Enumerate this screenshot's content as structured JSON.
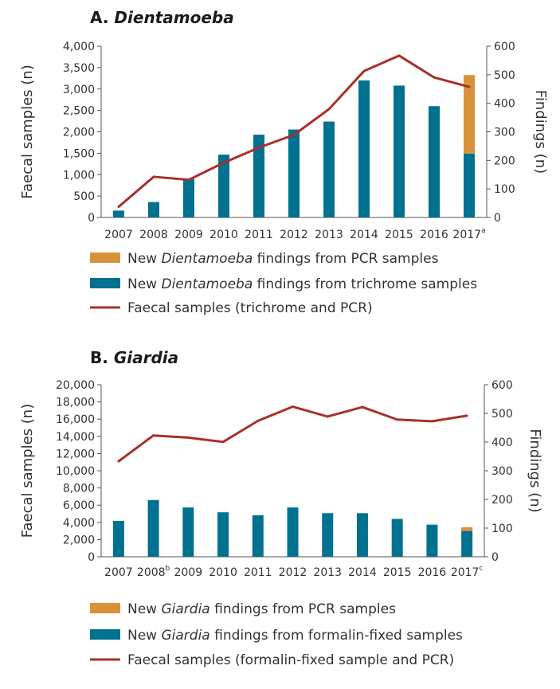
{
  "colors": {
    "pcr": "#D8933A",
    "microscopy": "#00718F",
    "line": "#A8302A",
    "axis": "#555555"
  },
  "chart_data": [
    {
      "id": "A",
      "type": "bar",
      "title_prefix": "A.",
      "title_italic": "Dientamoeba",
      "ylabel_left": "Faecal samples (n)",
      "ylabel_right": "Findings (n)",
      "categories": [
        "2007",
        "2008",
        "2009",
        "2010",
        "2011",
        "2012",
        "2013",
        "2014",
        "2015",
        "2016",
        "2017"
      ],
      "category_superscripts": [
        "",
        "",
        "",
        "",
        "",
        "",
        "",
        "",
        "",
        "",
        "a"
      ],
      "ylim_left": [
        0,
        4000
      ],
      "yticks_left": [
        "0",
        "500",
        "1,000",
        "1,500",
        "2,000",
        "2,500",
        "3,000",
        "3,500",
        "4,000"
      ],
      "ylim_right": [
        0,
        600
      ],
      "yticks_right": [
        "0",
        "100",
        "200",
        "300",
        "400",
        "500",
        "600"
      ],
      "series": [
        {
          "name_before": "New ",
          "name_italic": "Dientamoeba",
          "name_after": " findings from trichrome samples",
          "kind": "bar",
          "axis": "right",
          "color_key": "microscopy",
          "values": [
            24,
            54,
            135,
            220,
            290,
            308,
            336,
            480,
            462,
            390,
            224
          ]
        },
        {
          "name_before": "New ",
          "name_italic": "Dientamoeba",
          "name_after": " findings from PCR samples",
          "kind": "bar-stack",
          "axis": "right",
          "color_key": "pcr",
          "values": [
            0,
            0,
            0,
            0,
            0,
            0,
            0,
            0,
            0,
            0,
            275
          ]
        },
        {
          "name_before": "Faecal samples (trichrome and PCR)",
          "name_italic": "",
          "name_after": "",
          "kind": "line",
          "axis": "left",
          "color_key": "line",
          "values": [
            250,
            950,
            880,
            1280,
            1630,
            1930,
            2530,
            3420,
            3780,
            3270,
            3050
          ]
        }
      ],
      "legend_order": [
        1,
        0,
        2
      ]
    },
    {
      "id": "B",
      "type": "bar",
      "title_prefix": "B.",
      "title_italic": "Giardia",
      "ylabel_left": "Faecal samples (n)",
      "ylabel_right": "Findings (n)",
      "categories": [
        "2007",
        "2008",
        "2009",
        "2010",
        "2011",
        "2012",
        "2013",
        "2014",
        "2015",
        "2016",
        "2017"
      ],
      "category_superscripts": [
        "",
        "b",
        "",
        "",
        "",
        "",
        "",
        "",
        "",
        "",
        "c"
      ],
      "ylim_left": [
        0,
        20000
      ],
      "yticks_left": [
        "0",
        "2,000",
        "4,000",
        "6,000",
        "8,000",
        "10,000",
        "12,000",
        "14,000",
        "16,000",
        "18,000",
        "20,000"
      ],
      "ylim_right": [
        0,
        600
      ],
      "yticks_right": [
        "0",
        "100",
        "200",
        "300",
        "400",
        "500",
        "600"
      ],
      "series": [
        {
          "name_before": "New ",
          "name_italic": "Giardia",
          "name_after": " findings from formalin-fixed samples",
          "kind": "bar",
          "axis": "right",
          "color_key": "microscopy",
          "values": [
            125,
            198,
            172,
            155,
            145,
            172,
            152,
            152,
            132,
            112,
            90
          ]
        },
        {
          "name_before": "New ",
          "name_italic": "Giardia",
          "name_after": " findings from PCR samples",
          "kind": "bar-stack",
          "axis": "right",
          "color_key": "pcr",
          "values": [
            0,
            0,
            0,
            0,
            0,
            0,
            0,
            0,
            0,
            0,
            13
          ]
        },
        {
          "name_before": "Faecal samples (formalin-fixed sample and PCR)",
          "name_italic": "",
          "name_after": "",
          "kind": "line",
          "axis": "left",
          "color_key": "line",
          "values": [
            11100,
            14100,
            13850,
            13350,
            15800,
            17450,
            16300,
            17400,
            15950,
            15750,
            16400
          ]
        }
      ],
      "legend_order": [
        1,
        0,
        2
      ]
    }
  ]
}
